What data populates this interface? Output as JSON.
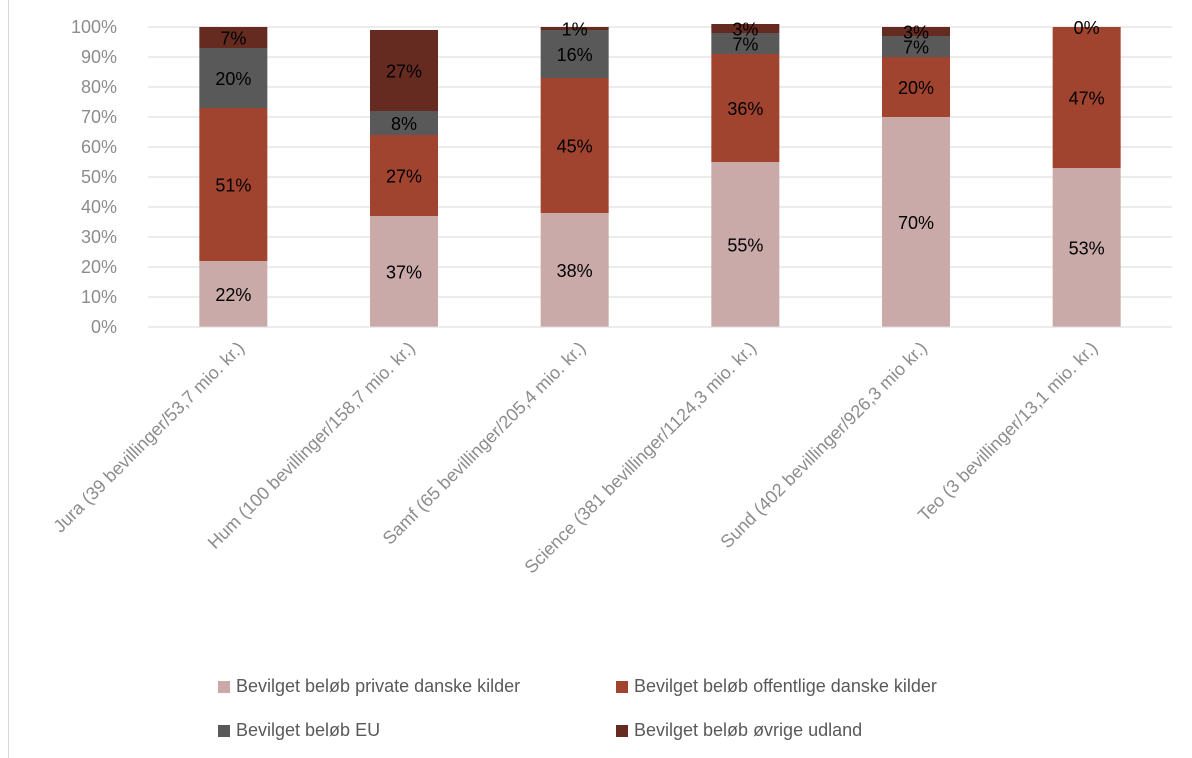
{
  "chart_data": {
    "type": "bar",
    "stacked": true,
    "percent_stacked": true,
    "categories": [
      "Jura (39 bevillinger/53,7 mio. kr.)",
      "Hum (100 bevillinger/158,7 mio. kr.)",
      "Samf (65 bevillinger/205,4 mio. kr.)",
      "Science (381 bevillinger/1124,3 mio. kr.)",
      "Sund (402 bevillinger/926,3 mio kr.)",
      "Teo (3 bevillinger/13,1 mio. kr.)"
    ],
    "series": [
      {
        "name": "Bevilget beløb private danske kilder",
        "color": "#c9aaa9",
        "values": [
          22,
          37,
          38,
          55,
          70,
          53
        ],
        "labels": [
          "22%",
          "37%",
          "38%",
          "55%",
          "70%",
          "53%"
        ]
      },
      {
        "name": "Bevilget beløb offentlige danske kilder",
        "color": "#a0432f",
        "values": [
          51,
          27,
          45,
          36,
          20,
          47
        ],
        "labels": [
          "51%",
          "27%",
          "45%",
          "36%",
          "20%",
          "47%"
        ]
      },
      {
        "name": "Bevilget beløb EU",
        "color": "#595959",
        "values": [
          20,
          8,
          16,
          7,
          7,
          0
        ],
        "labels": [
          "20%",
          "8%",
          "16%",
          "7%",
          "7%",
          ""
        ]
      },
      {
        "name": "Bevilget beløb øvrige udland",
        "color": "#652b20",
        "values": [
          7,
          27,
          1,
          3,
          3,
          0
        ],
        "labels": [
          "7%",
          "27%",
          "1%",
          "3%",
          "3%",
          "0%"
        ]
      }
    ],
    "ylim": [
      0,
      100
    ],
    "yticks": [
      "0%",
      "10%",
      "20%",
      "30%",
      "40%",
      "50%",
      "60%",
      "70%",
      "80%",
      "90%",
      "100%"
    ],
    "grid": true,
    "legend_position": "bottom"
  }
}
